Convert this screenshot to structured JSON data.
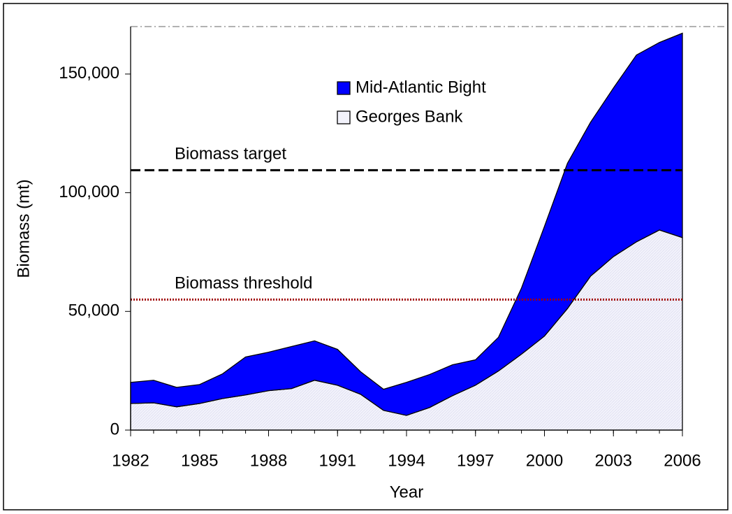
{
  "chart_data": {
    "type": "stacked-area",
    "x_label": "Year",
    "y_label": "Biomass (mt)",
    "x": [
      1982,
      1983,
      1984,
      1985,
      1986,
      1987,
      1988,
      1989,
      1990,
      1991,
      1992,
      1993,
      1994,
      1995,
      1996,
      1997,
      1998,
      1999,
      2000,
      2001,
      2002,
      2003,
      2004,
      2005,
      2006
    ],
    "series": [
      {
        "name": "Georges Bank",
        "color": "#eeeef8",
        "values": [
          11200,
          11500,
          9800,
          11200,
          13300,
          14800,
          16600,
          17500,
          21000,
          18900,
          15100,
          8300,
          6200,
          9500,
          14500,
          18900,
          24900,
          32000,
          39600,
          51200,
          64800,
          73100,
          79300,
          84300,
          81100
        ]
      },
      {
        "name": "Mid-Atlantic Bight",
        "color": "#0000ff",
        "values": [
          8900,
          9500,
          8200,
          8000,
          10400,
          16000,
          16200,
          17700,
          16600,
          15100,
          9500,
          8900,
          13900,
          13900,
          13000,
          10700,
          14200,
          27800,
          46200,
          61200,
          64800,
          71000,
          78700,
          79000,
          86100
        ]
      }
    ],
    "reference_lines": [
      {
        "label": "Biomass target",
        "value": 109500,
        "color": "#000000",
        "label_color": "#1a5c1a",
        "style": "dashed"
      },
      {
        "label": "Biomass threshold",
        "value": 55000,
        "color": "#a00000",
        "label_color": "#a00000",
        "style": "dotted"
      }
    ],
    "xlim": [
      1982,
      2006
    ],
    "xticks": [
      1982,
      1985,
      1988,
      1991,
      1994,
      1997,
      2000,
      2003,
      2006
    ],
    "ylim": [
      0,
      170000
    ],
    "yticks": [
      0,
      {
        "value": 50000,
        "label": "50,000"
      },
      {
        "value": 100000,
        "label": "100,000"
      },
      {
        "value": 150000,
        "label": "150,000"
      }
    ]
  }
}
